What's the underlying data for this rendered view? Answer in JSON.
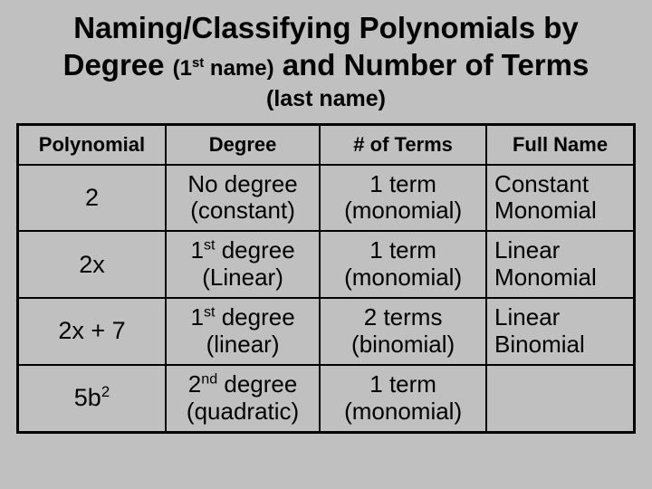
{
  "title": {
    "line1": "Naming/Classifying Polynomials by",
    "line2_a": "Degree ",
    "line2_sub": "(1",
    "line2_sup": "st",
    "line2_sub2": " name)",
    "line2_b": " and Number of Terms",
    "line3": "(last name)"
  },
  "header": {
    "c1": "Polynomial",
    "c2": "Degree",
    "c3": "# of Terms",
    "c4": "Full Name"
  },
  "rows": [
    {
      "poly_html": "2",
      "degree_l1": "No degree",
      "degree_l2": "(constant)",
      "degree_sup": "",
      "terms_l1": "1 term",
      "terms_l2": "(monomial)",
      "name_l1": "Constant",
      "name_l2": "Monomial"
    },
    {
      "poly_html": "2x",
      "degree_l1": " degree",
      "degree_l2": "(Linear)",
      "degree_pre": "1",
      "degree_sup": "st",
      "terms_l1": "1 term",
      "terms_l2": "(monomial)",
      "name_l1": "Linear",
      "name_l2": "Monomial"
    },
    {
      "poly_html": "2x + 7",
      "degree_l1": " degree",
      "degree_l2": "(linear)",
      "degree_pre": "1",
      "degree_sup": "st",
      "terms_l1": "2 terms",
      "terms_l2": "(binomial)",
      "name_l1": "Linear",
      "name_l2": "Binomial"
    },
    {
      "poly_html": "5b",
      "poly_sup": "2",
      "degree_l1": " degree",
      "degree_l2": "(quadratic)",
      "degree_pre": "2",
      "degree_sup": "nd",
      "terms_l1": "1 term",
      "terms_l2": "(monomial)",
      "name_l1": "",
      "name_l2": ""
    }
  ],
  "styles": {
    "background_color": "#c0c0c0",
    "text_color": "#000000",
    "border_color": "#000000",
    "title_fontsize": 33,
    "subtitle_fontsize": 24,
    "lastname_fontsize": 25,
    "header_fontsize": 22,
    "cell_fontsize": 26,
    "outer_border_width": 3,
    "inner_border_width": 2,
    "col_widths_pct": [
      24,
      25,
      27,
      24
    ]
  }
}
